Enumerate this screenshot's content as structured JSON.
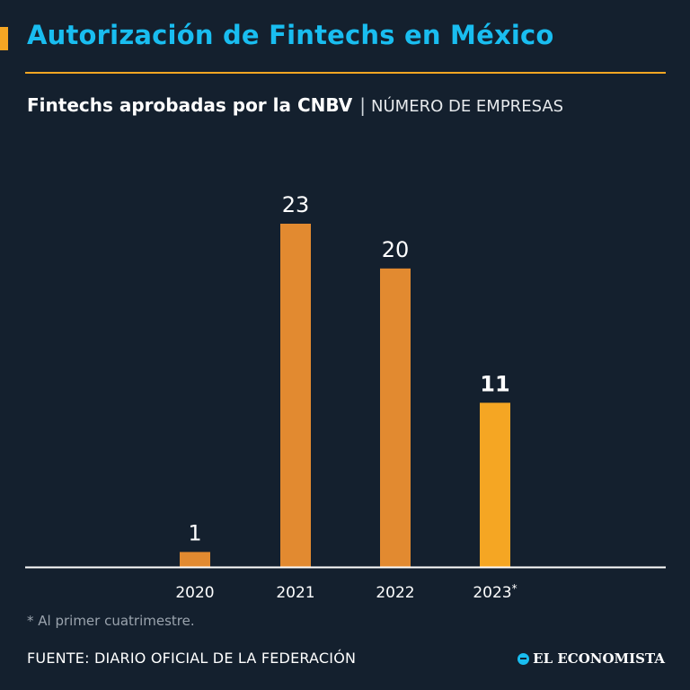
{
  "header": {
    "title": "Autorización de Fintechs en México",
    "subtitle_bold": "Fintechs aprobadas por la CNBV",
    "subtitle_separator": "|",
    "subtitle_unit": "NÚMERO DE EMPRESAS"
  },
  "chart_data": {
    "type": "bar",
    "categories": [
      "2020",
      "2021",
      "2022",
      "2023*"
    ],
    "values": [
      1,
      23,
      20,
      11
    ],
    "data_labels": [
      "1",
      "23",
      "20",
      "11"
    ],
    "ylim": [
      0,
      23
    ],
    "grid": false,
    "highlight_index": 3,
    "colors": {
      "bar": "#e28a30",
      "highlight": "#f5a623",
      "axis": "#ffffff"
    }
  },
  "footnote": "* Al primer cuatrimestre.",
  "source": "FUENTE: DIARIO OFICIAL DE LA FEDERACIÓN",
  "brand": {
    "name": "EL ECONOMISTA",
    "icon": "el-economista-logo-icon"
  },
  "colors": {
    "background": "#14202e",
    "title": "#19bdf0",
    "accent": "#f5a623"
  }
}
